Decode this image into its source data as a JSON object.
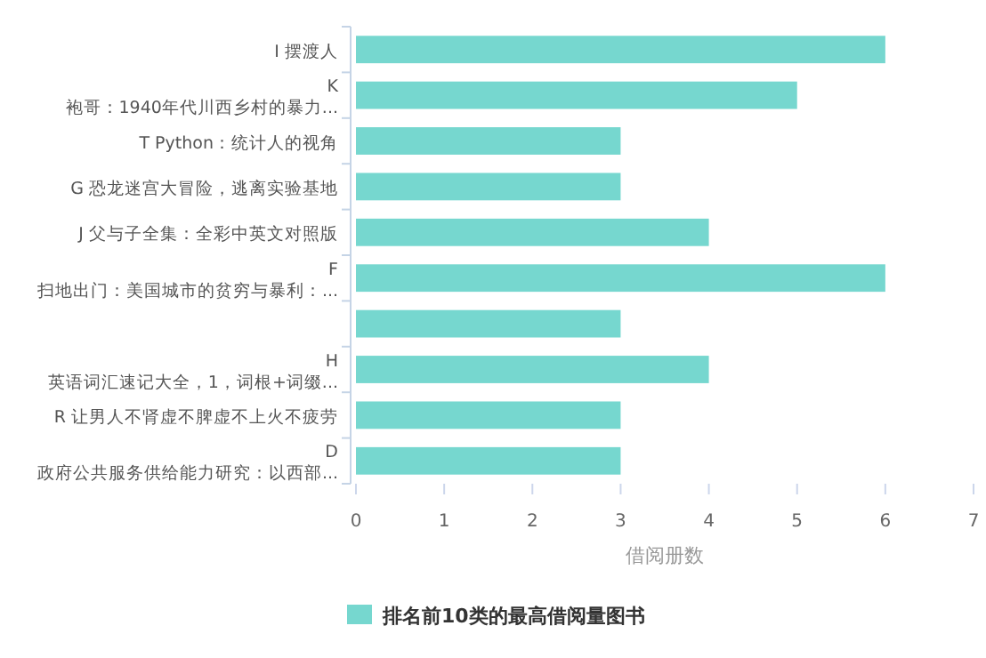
{
  "chart_data": {
    "type": "bar",
    "orientation": "horizontal",
    "xlabel": "借阅册数",
    "categories": [
      "I 摆渡人",
      "K\n袍哥：1940年代川西乡村的暴力...",
      "T Python：统计人的视角",
      "G 恐龙迷宫大冒险，逃离实验基地",
      "J 父与子全集：全彩中英文对照版",
      "F\n扫地出门：美国城市的贫穷与暴利：...",
      null,
      "H\n英语词汇速记大全，1，词根+词缀...",
      "R 让男人不肾虚不脾虚不上火不疲劳",
      "D\n政府公共服务供给能力研究：以西部..."
    ],
    "series": [
      {
        "name": "排名前10类的最高借阅量图书",
        "color": "#76d7cf",
        "values": [
          6,
          5,
          3,
          3,
          4,
          6,
          3,
          4,
          3,
          3
        ]
      }
    ],
    "xlim": [
      0,
      7
    ],
    "xticks": [
      0,
      1,
      2,
      3,
      4,
      5,
      6,
      7
    ],
    "grid": false,
    "legend": "bottom"
  }
}
